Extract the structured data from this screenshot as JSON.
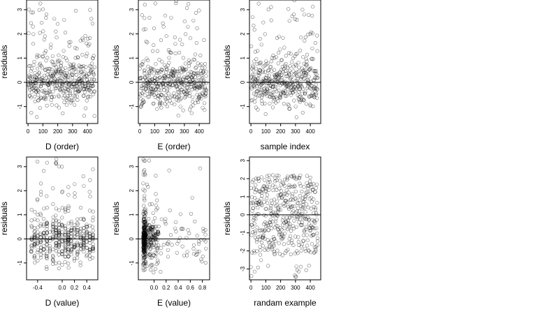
{
  "chart_data": [
    {
      "type": "scatter",
      "xlabel": "D (order)",
      "ylabel": "residuals",
      "xlim": [
        -10,
        470
      ],
      "ylim": [
        -1.7,
        3.4
      ],
      "xticks": [
        0,
        100,
        200,
        300,
        400
      ],
      "yticks": [
        -1,
        0,
        1,
        2,
        3
      ],
      "xtick_labels": [
        "0",
        "100",
        "200",
        "300",
        "400"
      ],
      "ytick_labels": [
        "-1",
        "0",
        "1",
        "2",
        "3"
      ],
      "hline": 0,
      "grid": false,
      "series": [
        {
          "gen": "order"
        }
      ]
    },
    {
      "type": "scatter",
      "xlabel": "E (order)",
      "ylabel": "residuals",
      "xlim": [
        -10,
        470
      ],
      "ylim": [
        -1.7,
        3.4
      ],
      "xticks": [
        0,
        100,
        200,
        300,
        400
      ],
      "yticks": [
        -1,
        0,
        1,
        2,
        3
      ],
      "xtick_labels": [
        "0",
        "100",
        "200",
        "300",
        "400"
      ],
      "ytick_labels": [
        "-1",
        "0",
        "1",
        "2",
        "3"
      ],
      "hline": 0,
      "grid": false,
      "series": [
        {
          "gen": "order"
        }
      ]
    },
    {
      "type": "scatter",
      "xlabel": "sample index",
      "ylabel": "residuals",
      "xlim": [
        -10,
        470
      ],
      "ylim": [
        -1.7,
        3.4
      ],
      "xticks": [
        0,
        100,
        200,
        300,
        400
      ],
      "yticks": [
        -1,
        0,
        1,
        2,
        3
      ],
      "xtick_labels": [
        "0",
        "100",
        "200",
        "300",
        "400"
      ],
      "ytick_labels": [
        "-1",
        "0",
        "1",
        "2",
        "3"
      ],
      "hline": 0,
      "grid": false,
      "series": [
        {
          "gen": "order"
        }
      ]
    },
    {
      "type": "scatter",
      "xlabel": "D (value)",
      "ylabel": "residuals",
      "xlim": [
        -0.58,
        0.58
      ],
      "ylim": [
        -1.7,
        3.4
      ],
      "xticks": [
        -0.4,
        0.0,
        0.2,
        0.4
      ],
      "yticks": [
        -1,
        0,
        1,
        2,
        3
      ],
      "xtick_labels": [
        "-0.4",
        "0.0",
        "0.2",
        "0.4"
      ],
      "ytick_labels": [
        "-1",
        "0",
        "1",
        "2",
        "3"
      ],
      "hline": 0,
      "grid": false,
      "series": [
        {
          "gen": "dvalue"
        }
      ]
    },
    {
      "type": "scatter",
      "xlabel": "E (value)",
      "ylabel": "residuals",
      "xlim": [
        -0.26,
        0.92
      ],
      "ylim": [
        -1.7,
        3.4
      ],
      "xticks": [
        0.0,
        0.2,
        0.4,
        0.6,
        0.8
      ],
      "yticks": [
        -1,
        0,
        1,
        2,
        3
      ],
      "xtick_labels": [
        "0.0",
        "0.2",
        "0.4",
        "0.6",
        "0.8"
      ],
      "ytick_labels": [
        "-1",
        "0",
        "1",
        "2",
        "3"
      ],
      "hline": 0,
      "grid": false,
      "series": [
        {
          "gen": "evalue"
        }
      ]
    },
    {
      "type": "scatter",
      "xlabel": "randam example",
      "ylabel": "residuals",
      "xlim": [
        -10,
        470
      ],
      "ylim": [
        -3.6,
        3.2
      ],
      "xticks": [
        0,
        100,
        200,
        300,
        400
      ],
      "yticks": [
        -3,
        -2,
        -1,
        0,
        1,
        2,
        3
      ],
      "xtick_labels": [
        "0",
        "100",
        "200",
        "300",
        "400"
      ],
      "ytick_labels": [
        "-3",
        "-2",
        "-1",
        "0",
        "1",
        "2",
        "3"
      ],
      "hline": 0,
      "grid": false,
      "series": [
        {
          "gen": "random"
        }
      ]
    }
  ]
}
